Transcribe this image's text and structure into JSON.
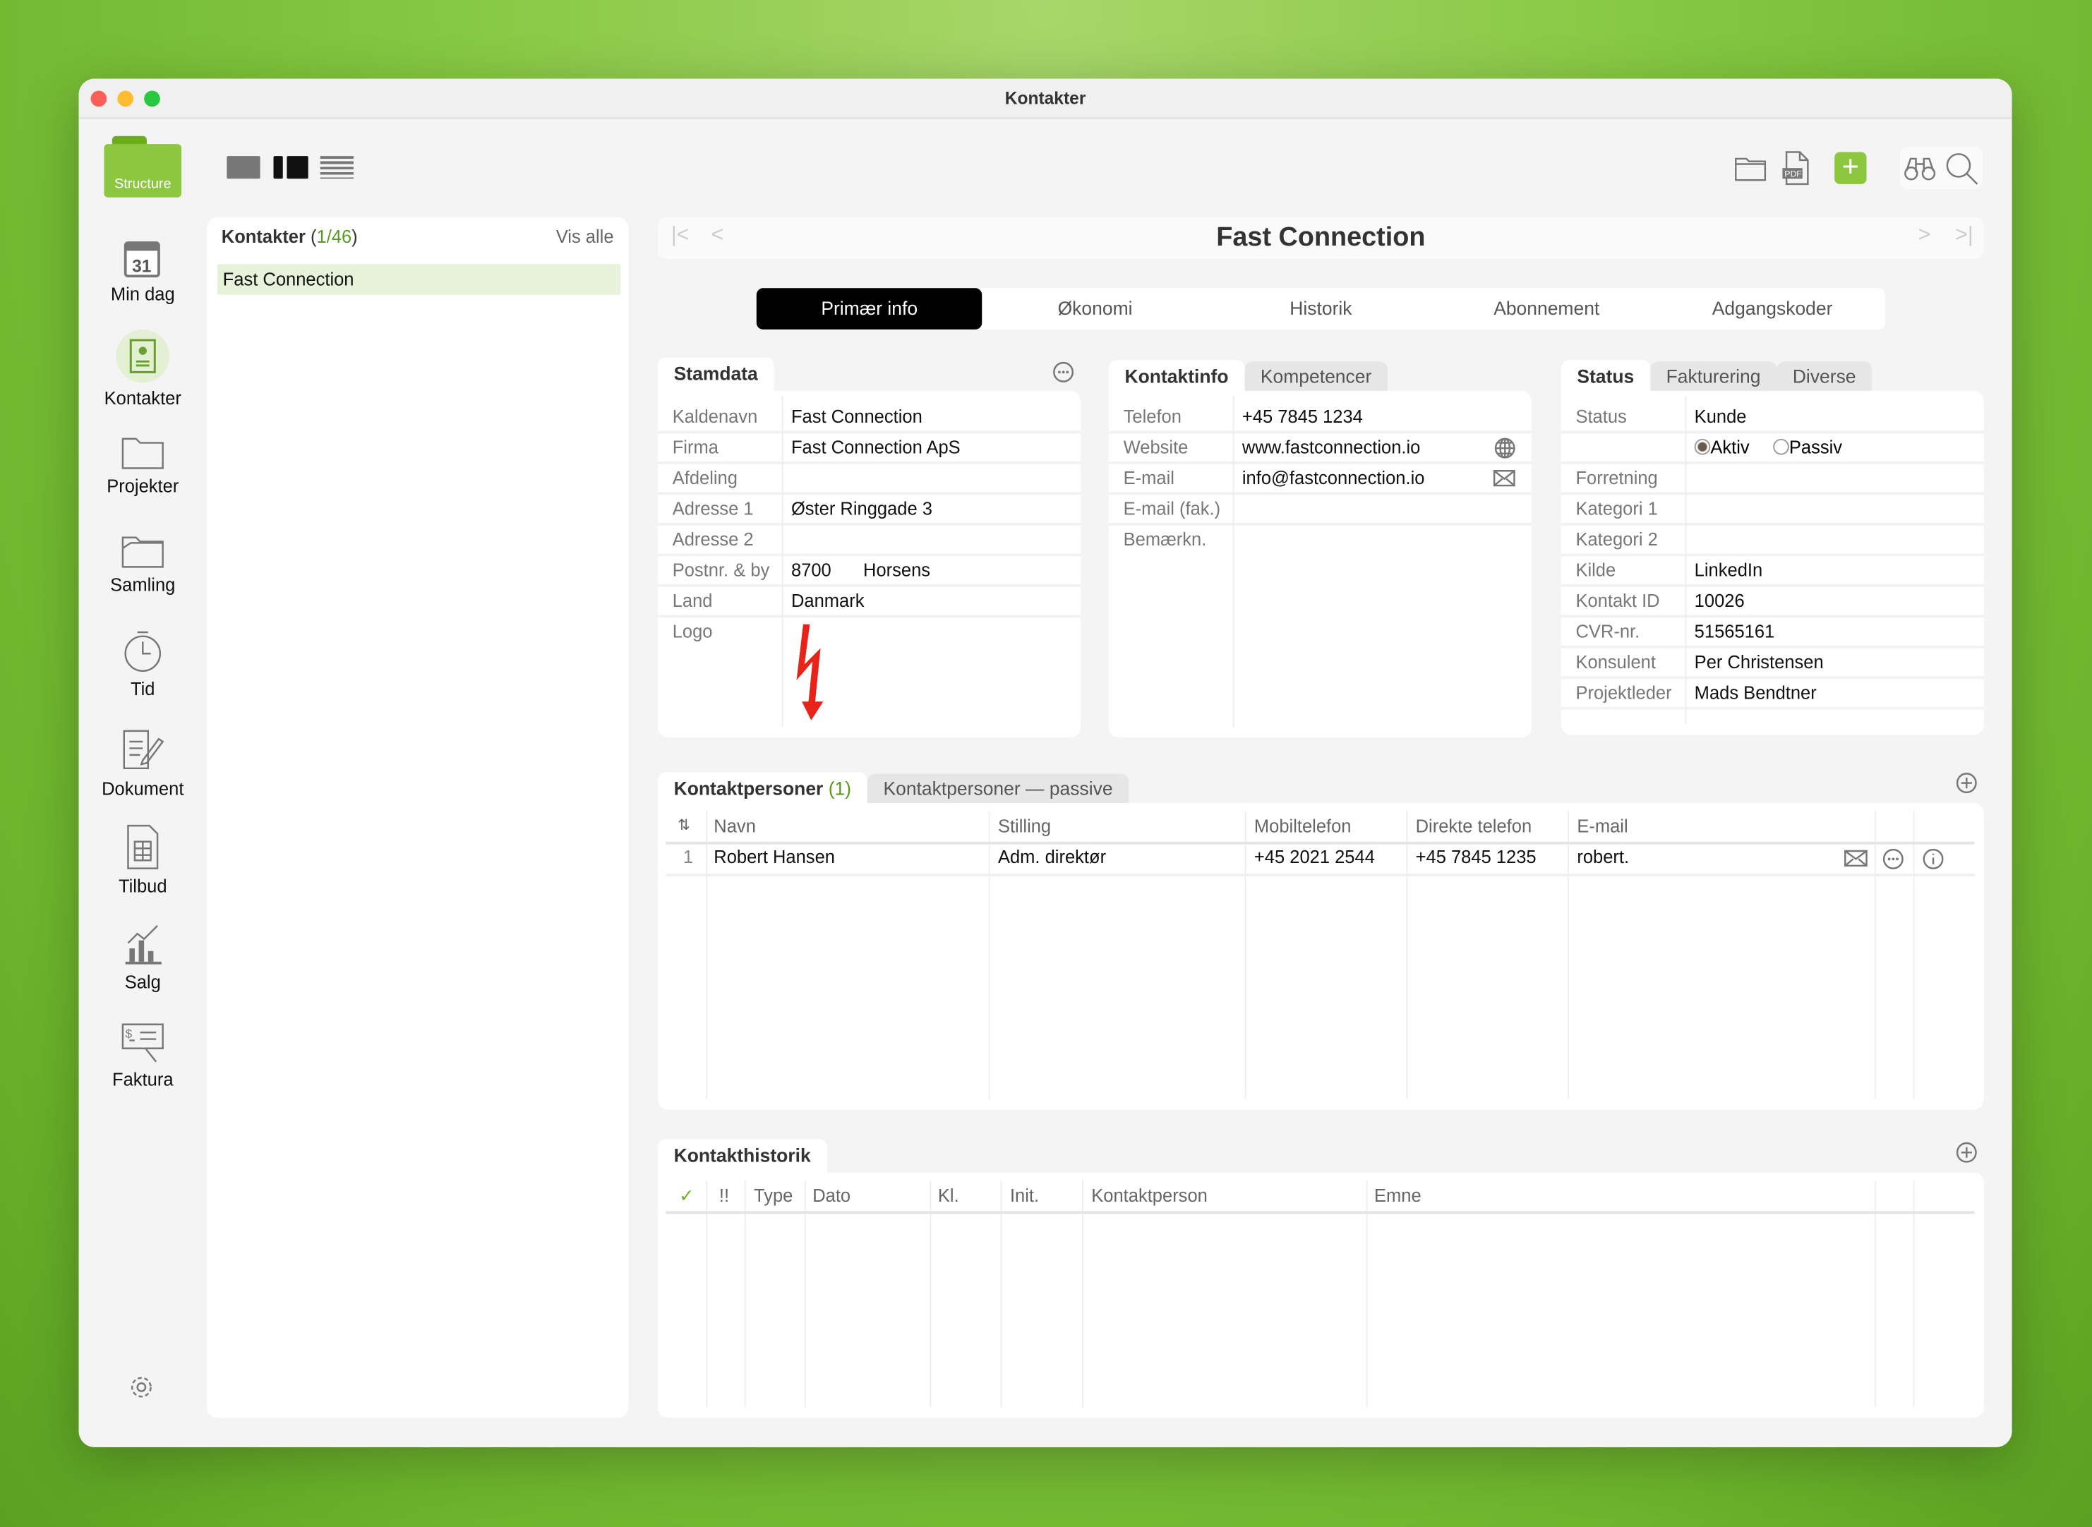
{
  "window": {
    "title": "Kontakter"
  },
  "app": {
    "logo_text": "Structure",
    "accent": "#8dc63f"
  },
  "sidebar": {
    "items": [
      {
        "label": "Min dag",
        "icon": "calendar-icon",
        "calendar_day": "31"
      },
      {
        "label": "Kontakter",
        "icon": "contacts-icon",
        "active": true
      },
      {
        "label": "Projekter",
        "icon": "folder-icon"
      },
      {
        "label": "Samling",
        "icon": "open-folder-icon"
      },
      {
        "label": "Tid",
        "icon": "stopwatch-icon"
      },
      {
        "label": "Dokument",
        "icon": "document-edit-icon"
      },
      {
        "label": "Tilbud",
        "icon": "spreadsheet-icon"
      },
      {
        "label": "Salg",
        "icon": "chart-icon"
      },
      {
        "label": "Faktura",
        "icon": "invoice-icon"
      }
    ]
  },
  "toolbar": {
    "view_modes": [
      "single-view-icon",
      "split-view-icon",
      "list-view-icon"
    ],
    "actions": [
      "folder-icon",
      "pdf-icon",
      "add-icon",
      "binoculars-icon",
      "search-icon"
    ],
    "pdf_label": "PDF"
  },
  "list": {
    "title": "Kontakter",
    "count_open": " (",
    "count": "1/46",
    "count_close": ")",
    "show_all": "Vis alle",
    "items": [
      "Fast Connection"
    ]
  },
  "record": {
    "title": "Fast Connection"
  },
  "tabs": [
    "Primær info",
    "Økonomi",
    "Historik",
    "Abonnement",
    "Adgangskoder"
  ],
  "stamdata": {
    "tab": "Stamdata",
    "rows": [
      {
        "label": "Kaldenavn",
        "value": "Fast Connection"
      },
      {
        "label": "Firma",
        "value": "Fast Connection ApS"
      },
      {
        "label": "Afdeling",
        "value": ""
      },
      {
        "label": "Adresse 1",
        "value": "Øster Ringgade 3"
      },
      {
        "label": "Adresse 2",
        "value": ""
      },
      {
        "label": "Postnr. & by",
        "value": "8700",
        "city": "Horsens"
      },
      {
        "label": "Land",
        "value": "Danmark"
      },
      {
        "label": "Logo",
        "value": ""
      }
    ]
  },
  "kontaktinfo": {
    "tabs": [
      "Kontaktinfo",
      "Kompetencer"
    ],
    "rows": [
      {
        "label": "Telefon",
        "value": "+45 7845 1234"
      },
      {
        "label": "Website",
        "value": "www.fastconnection.io"
      },
      {
        "label": "E-mail",
        "value": "info@fastconnection.io"
      },
      {
        "label": "E-mail (fak.)",
        "value": ""
      },
      {
        "label": "Bemærkn.",
        "value": ""
      }
    ]
  },
  "status": {
    "tabs": [
      "Status",
      "Fakturering",
      "Diverse"
    ],
    "rows": [
      {
        "label": "Status",
        "value": "Kunde"
      },
      {
        "label": "",
        "value": ""
      },
      {
        "label": "Forretning",
        "value": ""
      },
      {
        "label": "Kategori 1",
        "value": ""
      },
      {
        "label": "Kategori 2",
        "value": ""
      },
      {
        "label": "Kilde",
        "value": "LinkedIn"
      },
      {
        "label": "Kontakt ID",
        "value": "10026"
      },
      {
        "label": "CVR-nr.",
        "value": "51565161"
      },
      {
        "label": "Konsulent",
        "value": "Per Christensen"
      },
      {
        "label": "Projektleder",
        "value": "Mads Bendtner"
      }
    ],
    "radio": {
      "options": [
        "Aktiv",
        "Passiv"
      ],
      "selected": "Aktiv"
    }
  },
  "contacts": {
    "tab_active": "Kontaktpersoner",
    "count": "(1)",
    "tab_passive": "Kontaktpersoner — passive",
    "columns": [
      "Navn",
      "Stilling",
      "Mobiltelefon",
      "Direkte telefon",
      "E-mail"
    ],
    "rows": [
      {
        "n": "1",
        "name": "Robert Hansen",
        "title": "Adm. direktør",
        "mobile": "+45 2021 2544",
        "direct": "+45 7845 1235",
        "email": "robert."
      }
    ]
  },
  "history": {
    "tab": "Kontakthistorik",
    "columns": [
      "✓",
      "!!",
      "Type",
      "Dato",
      "Kl.",
      "Init.",
      "Kontaktperson",
      "Emne"
    ]
  }
}
